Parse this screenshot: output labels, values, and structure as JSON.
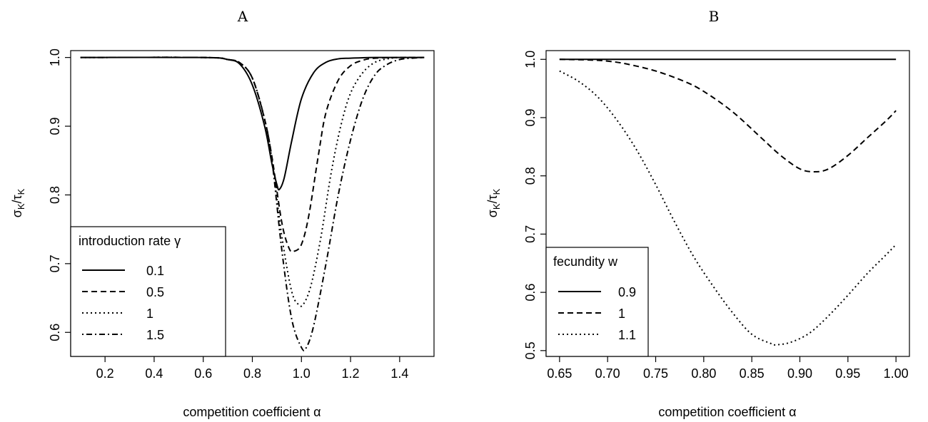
{
  "chart_data": [
    {
      "panel": "A",
      "type": "line",
      "title": "A",
      "xlabel": "competition coefficient α",
      "ylabel": "σ_K/τ_K",
      "xlim": [
        0.06,
        1.54
      ],
      "ylim": [
        0.565,
        1.01
      ],
      "xticks": [
        0.2,
        0.4,
        0.6,
        0.8,
        1.0,
        1.2,
        1.4
      ],
      "xtick_labels": [
        "0.2",
        "0.4",
        "0.6",
        "0.8",
        "1.0",
        "1.2",
        "1.4"
      ],
      "yticks": [
        0.6,
        0.7,
        0.8,
        0.9,
        1.0
      ],
      "ytick_labels": [
        "0.6",
        "0.7",
        "0.8",
        "0.9",
        "1.0"
      ],
      "grid": false,
      "legend": {
        "title": "introduction rate γ",
        "placement": "bottom-left",
        "entries": [
          "0.1",
          "0.5",
          "1",
          "1.5"
        ]
      },
      "series": [
        {
          "name": "0.1",
          "dash": "solid",
          "x": [
            0.1,
            0.6,
            0.7,
            0.75,
            0.8,
            0.85,
            0.88,
            0.9,
            0.91,
            0.93,
            0.96,
            1.0,
            1.05,
            1.1,
            1.15,
            1.2,
            1.3,
            1.5
          ],
          "y": [
            1.0,
            1.0,
            0.997,
            0.99,
            0.96,
            0.9,
            0.845,
            0.815,
            0.808,
            0.825,
            0.878,
            0.94,
            0.978,
            0.993,
            0.998,
            0.999,
            1.0,
            1.0
          ]
        },
        {
          "name": "0.5",
          "dash": "dashed",
          "x": [
            0.1,
            0.6,
            0.7,
            0.75,
            0.8,
            0.85,
            0.88,
            0.92,
            0.95,
            0.97,
            1.0,
            1.03,
            1.07,
            1.1,
            1.15,
            1.2,
            1.25,
            1.3,
            1.4,
            1.5
          ],
          "y": [
            1.0,
            1.0,
            0.997,
            0.992,
            0.97,
            0.91,
            0.855,
            0.76,
            0.722,
            0.718,
            0.728,
            0.77,
            0.86,
            0.92,
            0.967,
            0.988,
            0.996,
            0.999,
            1.0,
            1.0
          ]
        },
        {
          "name": "1",
          "dash": "dotted",
          "x": [
            0.1,
            0.6,
            0.7,
            0.75,
            0.8,
            0.85,
            0.88,
            0.92,
            0.96,
            0.99,
            1.01,
            1.04,
            1.08,
            1.12,
            1.16,
            1.2,
            1.25,
            1.3,
            1.35,
            1.4,
            1.5
          ],
          "y": [
            1.0,
            1.0,
            0.997,
            0.992,
            0.97,
            0.91,
            0.85,
            0.74,
            0.66,
            0.64,
            0.642,
            0.67,
            0.74,
            0.83,
            0.9,
            0.948,
            0.978,
            0.993,
            0.998,
            1.0,
            1.0
          ]
        },
        {
          "name": "1.5",
          "dash": "dashdot",
          "x": [
            0.1,
            0.6,
            0.7,
            0.75,
            0.8,
            0.85,
            0.88,
            0.92,
            0.96,
            1.0,
            1.02,
            1.05,
            1.1,
            1.15,
            1.2,
            1.25,
            1.3,
            1.35,
            1.4,
            1.45,
            1.5
          ],
          "y": [
            1.0,
            1.0,
            0.997,
            0.992,
            0.97,
            0.91,
            0.85,
            0.72,
            0.62,
            0.578,
            0.578,
            0.61,
            0.7,
            0.8,
            0.88,
            0.94,
            0.975,
            0.99,
            0.997,
            0.999,
            1.0
          ]
        }
      ]
    },
    {
      "panel": "B",
      "type": "line",
      "title": "B",
      "xlabel": "competition coefficient α",
      "ylabel": "σ_K/τ_K",
      "xlim": [
        0.636,
        1.014
      ],
      "ylim": [
        0.49,
        1.015
      ],
      "xticks": [
        0.65,
        0.7,
        0.75,
        0.8,
        0.85,
        0.9,
        0.95,
        1.0
      ],
      "xtick_labels": [
        "0.65",
        "0.70",
        "0.75",
        "0.80",
        "0.85",
        "0.90",
        "0.95",
        "1.00"
      ],
      "yticks": [
        0.5,
        0.6,
        0.7,
        0.8,
        0.9,
        1.0
      ],
      "ytick_labels": [
        "0.5",
        "0.6",
        "0.7",
        "0.8",
        "0.9",
        "1.0"
      ],
      "grid": false,
      "legend": {
        "title": "fecundity w",
        "placement": "bottom-left",
        "entries": [
          "0.9",
          "1",
          "1.1"
        ]
      },
      "series": [
        {
          "name": "0.9",
          "dash": "solid",
          "x": [
            0.65,
            1.0
          ],
          "y": [
            1.0,
            1.0
          ]
        },
        {
          "name": "1",
          "dash": "dashed",
          "x": [
            0.65,
            0.68,
            0.7,
            0.72,
            0.75,
            0.78,
            0.8,
            0.83,
            0.86,
            0.88,
            0.9,
            0.915,
            0.93,
            0.95,
            0.97,
            0.99,
            1.0
          ],
          "y": [
            1.0,
            0.999,
            0.997,
            0.992,
            0.98,
            0.962,
            0.945,
            0.91,
            0.865,
            0.835,
            0.812,
            0.807,
            0.812,
            0.835,
            0.865,
            0.895,
            0.912
          ]
        },
        {
          "name": "1.1",
          "dash": "dotted",
          "x": [
            0.65,
            0.67,
            0.69,
            0.71,
            0.73,
            0.75,
            0.77,
            0.79,
            0.81,
            0.83,
            0.85,
            0.87,
            0.875,
            0.89,
            0.91,
            0.93,
            0.95,
            0.97,
            0.99,
            1.0
          ],
          "y": [
            0.98,
            0.962,
            0.935,
            0.895,
            0.845,
            0.785,
            0.72,
            0.66,
            0.61,
            0.565,
            0.528,
            0.512,
            0.51,
            0.514,
            0.53,
            0.56,
            0.595,
            0.632,
            0.665,
            0.682
          ]
        }
      ]
    }
  ]
}
